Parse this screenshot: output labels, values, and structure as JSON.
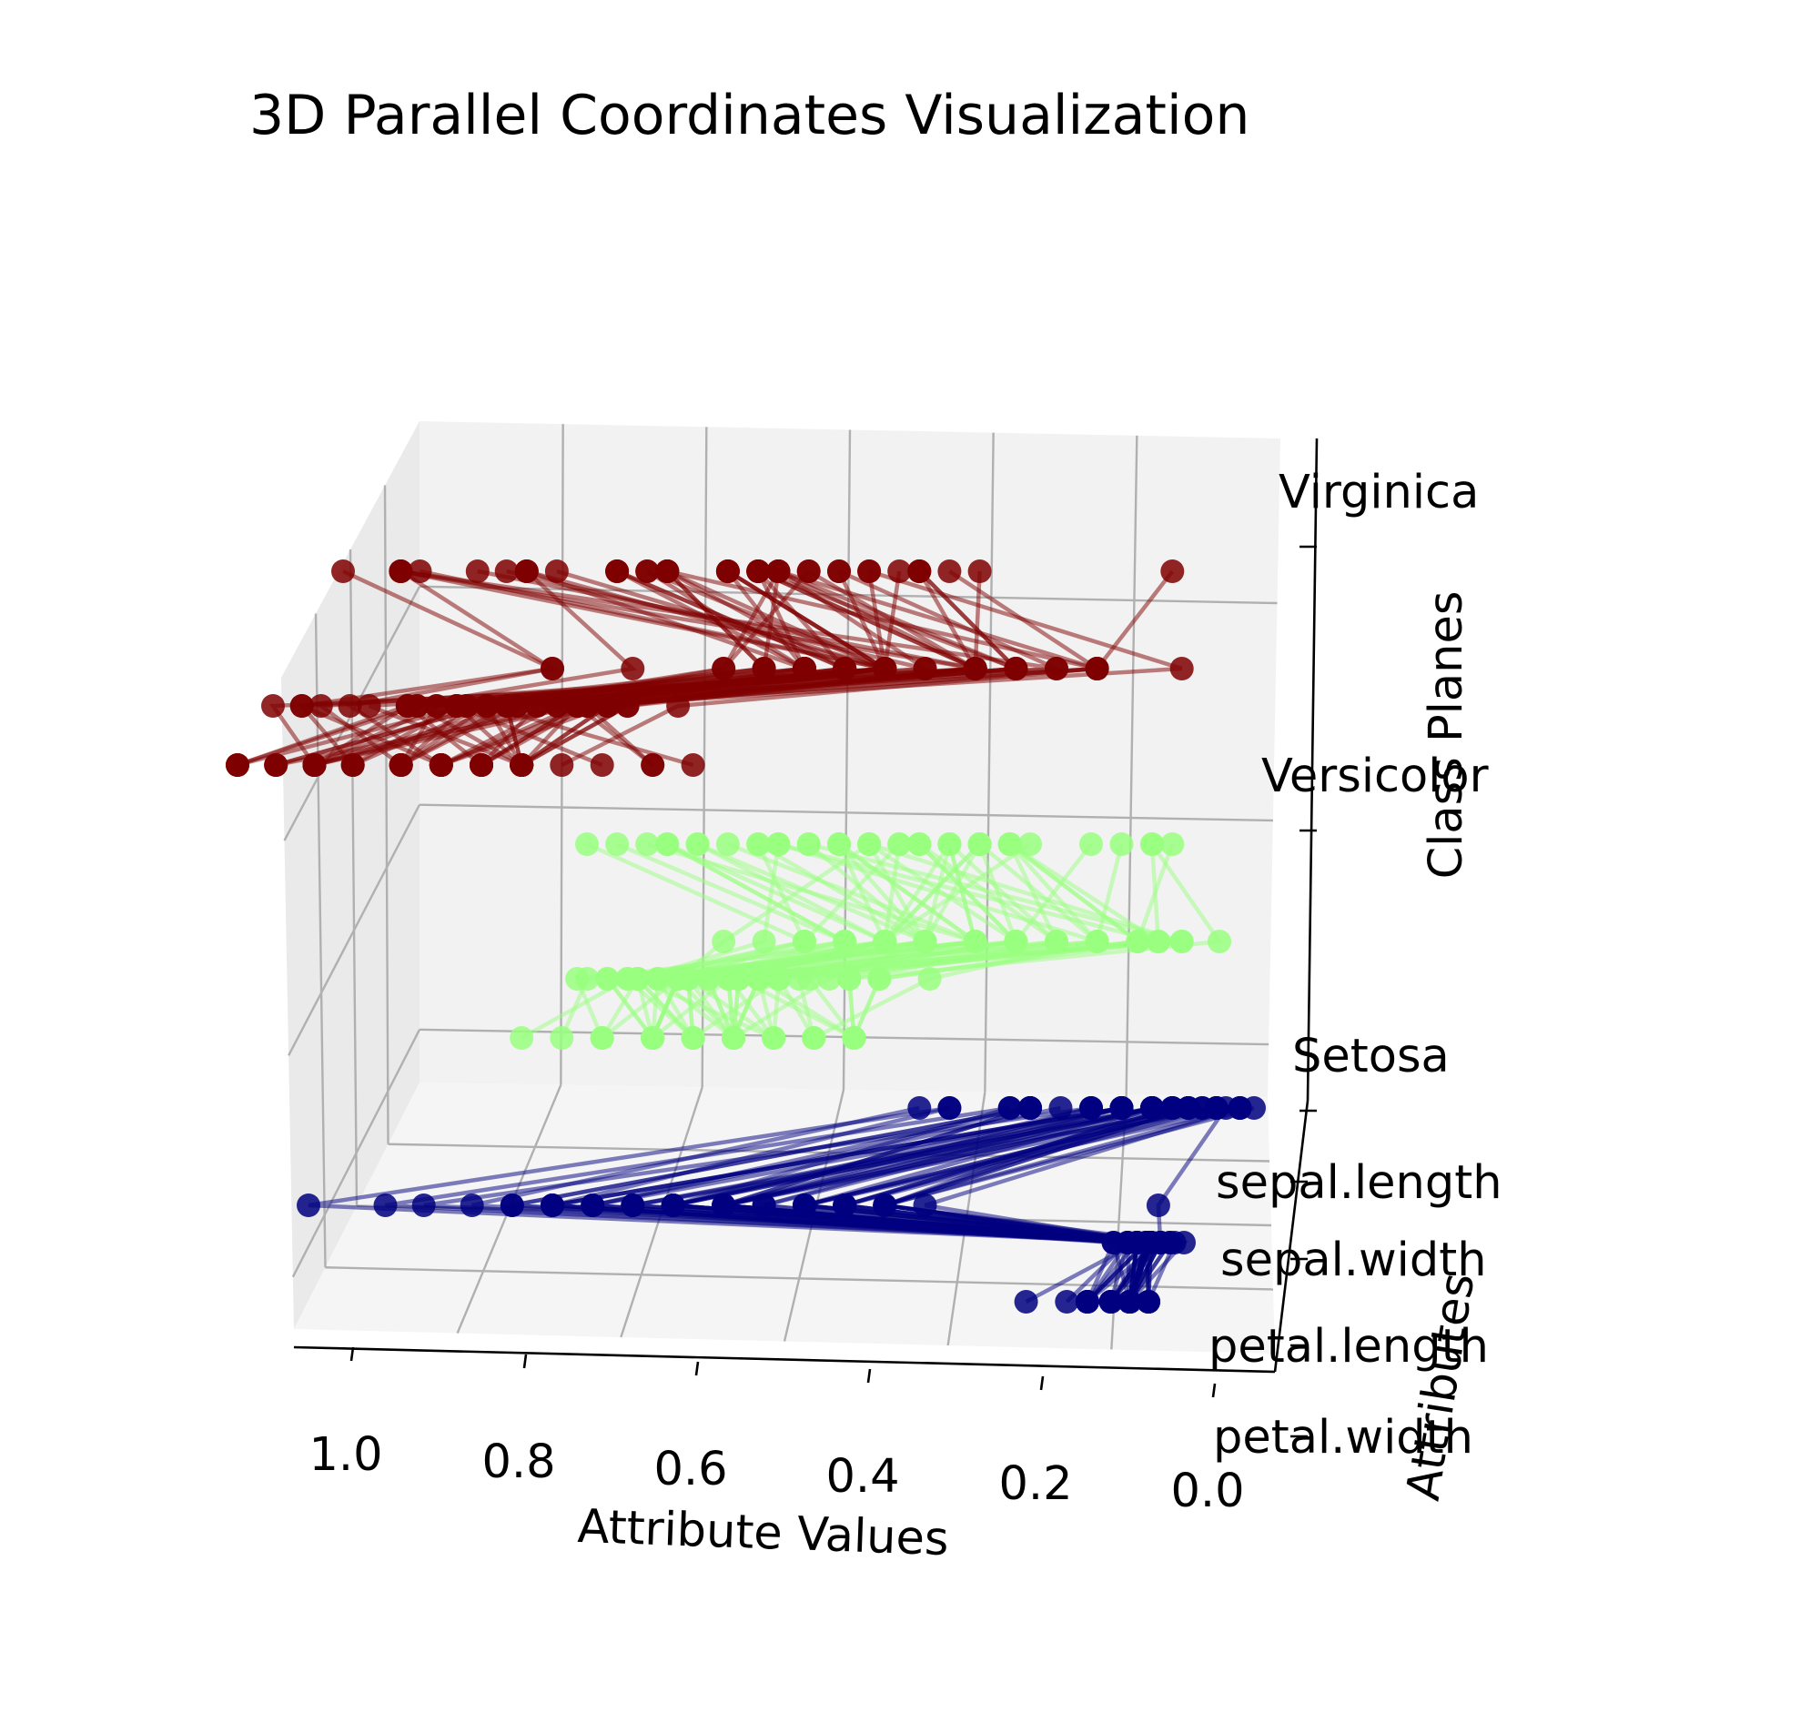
{
  "chart_data": {
    "type": "line",
    "title": "3D Parallel Coordinates Visualization",
    "xlabel": "Attribute Values",
    "ylabel": "Attributes",
    "zlabel": "Class Planes",
    "xlim": [
      0,
      1
    ],
    "x_ticks": [
      "1.0",
      "0.8",
      "0.6",
      "0.4",
      "0.2",
      "0.0"
    ],
    "attributes": [
      "sepal.length",
      "sepal.width",
      "petal.length",
      "petal.width"
    ],
    "class_planes": [
      "Setosa",
      "Versicolor",
      "Virginica"
    ],
    "grid": true,
    "series": [
      {
        "name": "Setosa",
        "color": "#000080",
        "values": {
          "sepal.length": [
            0.22,
            0.17,
            0.11,
            0.08,
            0.19,
            0.31,
            0.08,
            0.19,
            0.03,
            0.17,
            0.31,
            0.14,
            0.14,
            0.0,
            0.42,
            0.39,
            0.31,
            0.22,
            0.39,
            0.22,
            0.31,
            0.22,
            0.08,
            0.22,
            0.14,
            0.19,
            0.19,
            0.25,
            0.25,
            0.11,
            0.14,
            0.31,
            0.25,
            0.33,
            0.17,
            0.19,
            0.33,
            0.17,
            0.03,
            0.22,
            0.19,
            0.06,
            0.03,
            0.19,
            0.22,
            0.14,
            0.22,
            0.08,
            0.28,
            0.19
          ],
          "sepal.width": [
            0.63,
            0.42,
            0.5,
            0.46,
            0.67,
            0.79,
            0.58,
            0.58,
            0.38,
            0.46,
            0.71,
            0.58,
            0.42,
            0.42,
            0.83,
            1.0,
            0.79,
            0.63,
            0.75,
            0.75,
            0.58,
            0.71,
            0.67,
            0.54,
            0.58,
            0.42,
            0.58,
            0.63,
            0.58,
            0.5,
            0.46,
            0.58,
            0.88,
            0.92,
            0.46,
            0.5,
            0.63,
            0.67,
            0.42,
            0.58,
            0.63,
            0.13,
            0.5,
            0.63,
            0.75,
            0.42,
            0.75,
            0.5,
            0.71,
            0.54
          ],
          "petal.length": [
            0.07,
            0.07,
            0.05,
            0.08,
            0.07,
            0.12,
            0.07,
            0.08,
            0.07,
            0.08,
            0.08,
            0.1,
            0.07,
            0.02,
            0.03,
            0.08,
            0.05,
            0.07,
            0.12,
            0.08,
            0.12,
            0.08,
            0.0,
            0.12,
            0.15,
            0.1,
            0.1,
            0.08,
            0.07,
            0.1,
            0.1,
            0.08,
            0.08,
            0.07,
            0.08,
            0.03,
            0.05,
            0.07,
            0.05,
            0.08,
            0.05,
            0.05,
            0.05,
            0.1,
            0.15,
            0.07,
            0.1,
            0.07,
            0.08,
            0.07
          ],
          "petal.width": [
            0.04,
            0.04,
            0.04,
            0.04,
            0.04,
            0.13,
            0.08,
            0.04,
            0.04,
            0.0,
            0.04,
            0.04,
            0.0,
            0.0,
            0.04,
            0.13,
            0.13,
            0.08,
            0.08,
            0.08,
            0.04,
            0.13,
            0.04,
            0.17,
            0.04,
            0.04,
            0.13,
            0.04,
            0.04,
            0.04,
            0.04,
            0.13,
            0.0,
            0.04,
            0.04,
            0.04,
            0.04,
            0.0,
            0.04,
            0.04,
            0.08,
            0.08,
            0.04,
            0.21,
            0.13,
            0.08,
            0.04,
            0.04,
            0.04,
            0.04
          ]
        }
      },
      {
        "name": "Versicolor",
        "color": "#99FF7F",
        "values": {
          "sepal.length": [
            0.75,
            0.58,
            0.72,
            0.33,
            0.61,
            0.39,
            0.56,
            0.17,
            0.64,
            0.25,
            0.19,
            0.44,
            0.47,
            0.5,
            0.36,
            0.67,
            0.36,
            0.42,
            0.53,
            0.36,
            0.44,
            0.5,
            0.56,
            0.5,
            0.58,
            0.64,
            0.69,
            0.67,
            0.47,
            0.39,
            0.33,
            0.33,
            0.42,
            0.47,
            0.31,
            0.47,
            0.67,
            0.56,
            0.36,
            0.33,
            0.33,
            0.5,
            0.42,
            0.19,
            0.36,
            0.39,
            0.39,
            0.53,
            0.22,
            0.39
          ],
          "sepal.width": [
            0.5,
            0.5,
            0.46,
            0.13,
            0.33,
            0.33,
            0.54,
            0.17,
            0.38,
            0.29,
            0.0,
            0.42,
            0.08,
            0.38,
            0.38,
            0.46,
            0.42,
            0.29,
            0.08,
            0.21,
            0.5,
            0.33,
            0.21,
            0.33,
            0.38,
            0.42,
            0.33,
            0.42,
            0.38,
            0.25,
            0.17,
            0.17,
            0.29,
            0.29,
            0.42,
            0.58,
            0.46,
            0.13,
            0.42,
            0.21,
            0.25,
            0.42,
            0.25,
            0.13,
            0.29,
            0.42,
            0.38,
            0.38,
            0.21,
            0.33
          ],
          "petal.length": [
            0.63,
            0.59,
            0.66,
            0.51,
            0.61,
            0.59,
            0.63,
            0.39,
            0.61,
            0.49,
            0.42,
            0.54,
            0.51,
            0.63,
            0.44,
            0.58,
            0.59,
            0.53,
            0.59,
            0.49,
            0.64,
            0.51,
            0.66,
            0.63,
            0.56,
            0.58,
            0.64,
            0.68,
            0.59,
            0.42,
            0.47,
            0.46,
            0.49,
            0.69,
            0.59,
            0.59,
            0.63,
            0.58,
            0.53,
            0.51,
            0.58,
            0.61,
            0.51,
            0.39,
            0.54,
            0.54,
            0.54,
            0.56,
            0.34,
            0.53
          ],
          "petal.width": [
            0.54,
            0.58,
            0.58,
            0.5,
            0.58,
            0.5,
            0.63,
            0.38,
            0.5,
            0.54,
            0.38,
            0.58,
            0.38,
            0.54,
            0.5,
            0.54,
            0.58,
            0.38,
            0.58,
            0.42,
            0.71,
            0.5,
            0.58,
            0.46,
            0.5,
            0.54,
            0.54,
            0.67,
            0.58,
            0.38,
            0.42,
            0.38,
            0.46,
            0.63,
            0.58,
            0.63,
            0.58,
            0.5,
            0.5,
            0.5,
            0.46,
            0.54,
            0.46,
            0.38,
            0.5,
            0.46,
            0.5,
            0.5,
            0.42,
            0.5
          ]
        }
      },
      {
        "name": "Virginica",
        "color": "#7F0000",
        "values": {
          "sepal.length": [
            0.56,
            0.42,
            0.78,
            0.56,
            0.61,
            0.92,
            0.17,
            0.83,
            0.67,
            0.81,
            0.61,
            0.58,
            0.69,
            0.39,
            0.42,
            0.58,
            0.61,
            0.94,
            0.94,
            0.47,
            0.72,
            0.36,
            0.94,
            0.56,
            0.67,
            0.81,
            0.53,
            0.5,
            0.58,
            0.81,
            0.86,
            1.0,
            0.58,
            0.56,
            0.5,
            0.94,
            0.56,
            0.58,
            0.47,
            0.72,
            0.67,
            0.72,
            0.42,
            0.69,
            0.67,
            0.67,
            0.56,
            0.61,
            0.53,
            0.44
          ],
          "sepal.width": [
            0.54,
            0.29,
            0.42,
            0.38,
            0.42,
            0.42,
            0.21,
            0.38,
            0.21,
            0.67,
            0.5,
            0.29,
            0.42,
            0.21,
            0.33,
            0.5,
            0.42,
            0.75,
            0.25,
            0.08,
            0.5,
            0.33,
            0.33,
            0.29,
            0.54,
            0.5,
            0.33,
            0.42,
            0.33,
            0.42,
            0.33,
            0.75,
            0.33,
            0.33,
            0.25,
            0.42,
            0.58,
            0.46,
            0.42,
            0.46,
            0.46,
            0.46,
            0.29,
            0.5,
            0.54,
            0.42,
            0.21,
            0.42,
            0.58,
            0.42
          ],
          "petal.length": [
            0.85,
            0.69,
            0.83,
            0.78,
            0.81,
            0.95,
            0.59,
            0.9,
            0.81,
            0.86,
            0.69,
            0.73,
            0.76,
            0.68,
            0.69,
            0.73,
            0.76,
            0.97,
            1.0,
            0.68,
            0.8,
            0.66,
            0.97,
            0.66,
            0.8,
            0.85,
            0.64,
            0.66,
            0.78,
            0.81,
            0.86,
            0.92,
            0.78,
            0.69,
            0.78,
            0.86,
            0.78,
            0.76,
            0.64,
            0.75,
            0.78,
            0.69,
            0.69,
            0.83,
            0.8,
            0.71,
            0.68,
            0.71,
            0.75,
            0.69
          ],
          "petal.width": [
            1.0,
            0.75,
            0.83,
            0.71,
            0.88,
            0.83,
            0.67,
            0.71,
            0.71,
            1.0,
            0.79,
            0.75,
            0.83,
            0.79,
            0.96,
            0.92,
            0.71,
            0.88,
            0.92,
            0.58,
            0.92,
            0.79,
            0.79,
            0.71,
            0.83,
            0.71,
            0.71,
            0.71,
            0.83,
            0.63,
            0.75,
            0.79,
            0.88,
            0.58,
            0.54,
            0.92,
            0.96,
            0.71,
            0.71,
            0.83,
            0.96,
            0.92,
            0.75,
            0.92,
            1.0,
            0.92,
            0.75,
            0.79,
            0.92,
            0.71
          ]
        }
      }
    ]
  }
}
